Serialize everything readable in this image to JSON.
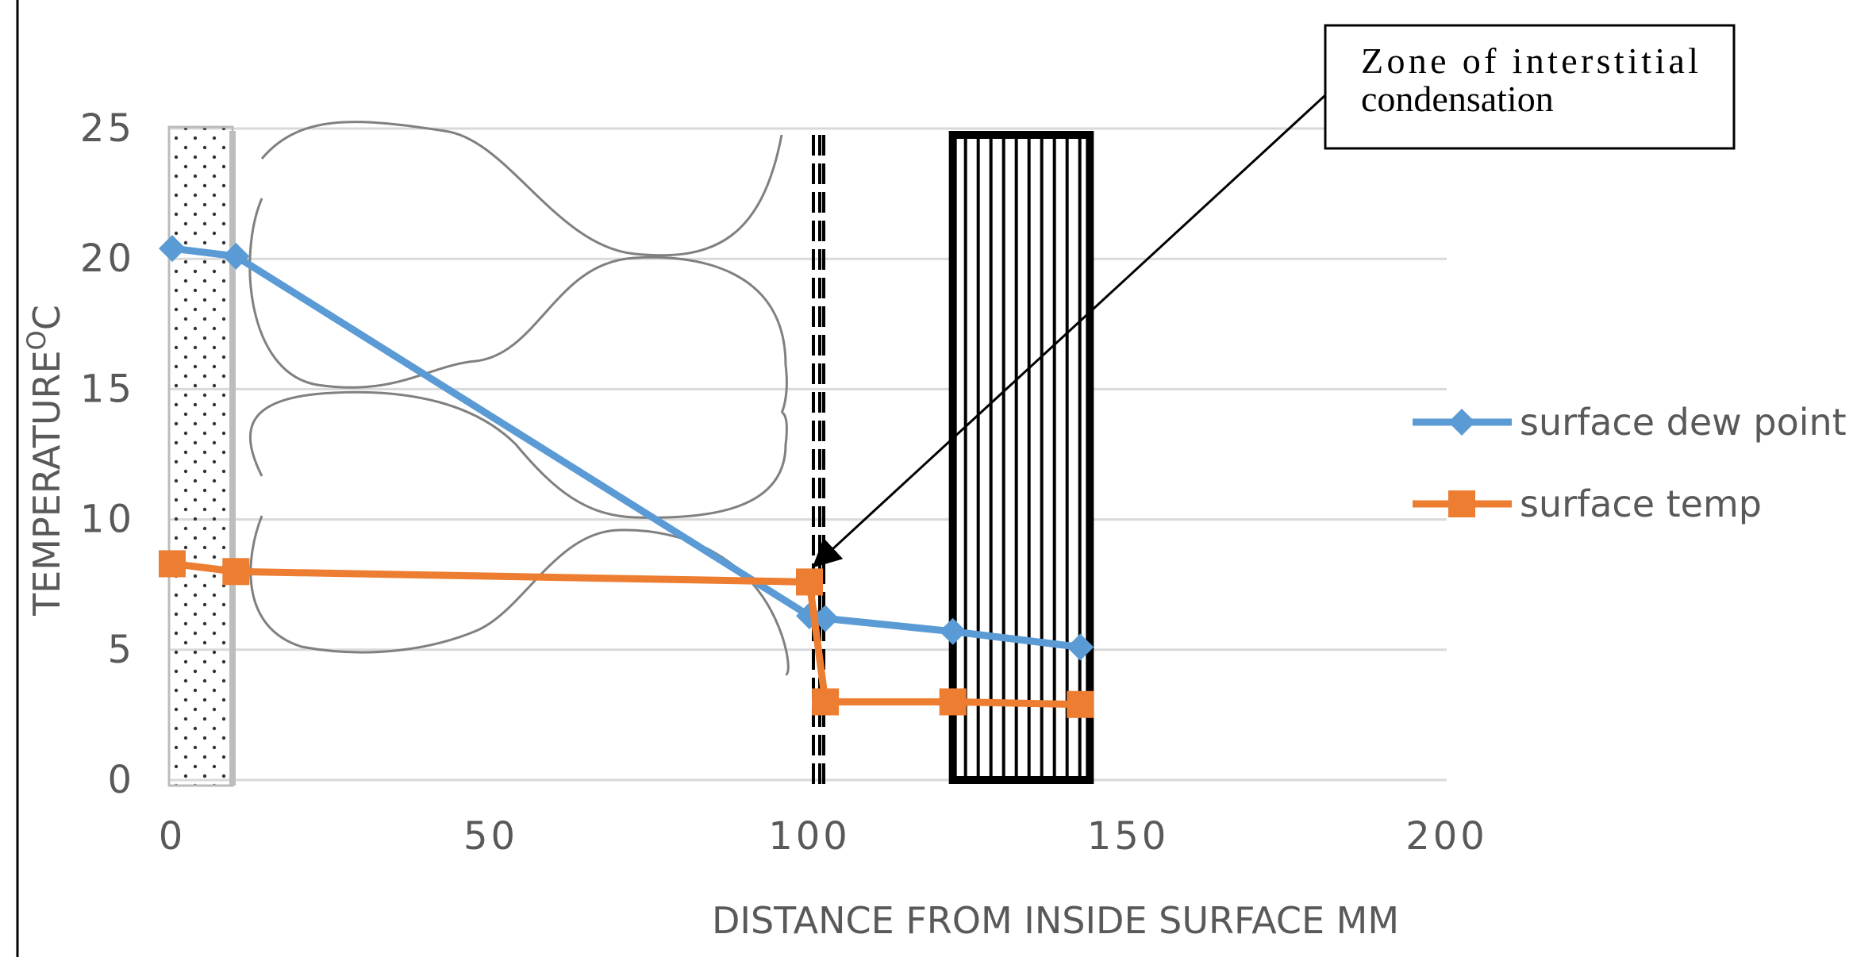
{
  "chart_data": {
    "type": "line",
    "xlabel": "DISTANCE FROM INSIDE SURFACE MM",
    "ylabel": "TEMPERATURE",
    "ylabel_unit_sup": "O",
    "ylabel_unit": "C",
    "xlim": [
      0,
      200
    ],
    "ylim": [
      0,
      25
    ],
    "x_ticks": [
      "0",
      "50",
      "100",
      "150",
      "200"
    ],
    "y_ticks": [
      "0",
      "5",
      "10",
      "15",
      "20",
      "25"
    ],
    "grid": "horizontal",
    "legend_position": "right",
    "series": [
      {
        "name": "surface dew point",
        "color": "#5B9BD5",
        "marker": "diamond",
        "x": [
          0,
          10,
          100,
          102.5,
          122.5,
          142.5
        ],
        "y": [
          20.4,
          20.1,
          6.3,
          6.2,
          5.7,
          5.1
        ]
      },
      {
        "name": "surface temp",
        "color": "#ED7D31",
        "marker": "square",
        "x": [
          0,
          10,
          100,
          102.5,
          122.5,
          142.5
        ],
        "y": [
          8.3,
          8.0,
          7.6,
          3.0,
          3.0,
          2.9
        ]
      }
    ],
    "annotation": {
      "line1": "Zone of interstitial",
      "line2": "condensation",
      "x": 100,
      "y": 7.6
    },
    "wall_layers": [
      "plaster",
      "brick-cavity",
      "membrane",
      "insulation"
    ]
  }
}
